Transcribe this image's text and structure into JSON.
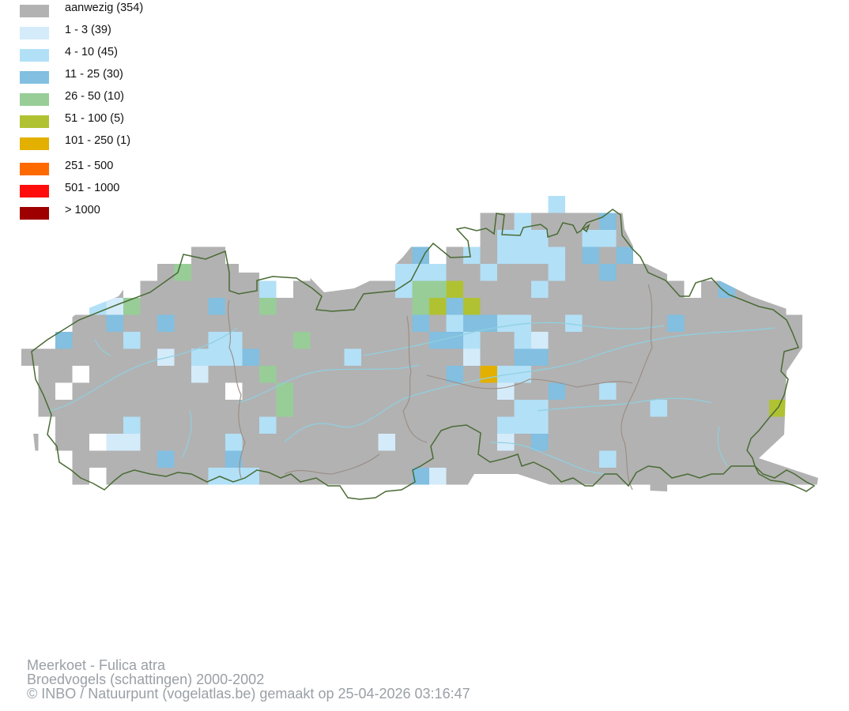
{
  "legend": [
    {
      "label": "aanwezig (354)",
      "color": "#b2b2b2"
    },
    {
      "label": "1 - 3 (39)",
      "color": "#d4ebfa"
    },
    {
      "label": "4 - 10 (45)",
      "color": "#b2e0f7"
    },
    {
      "label": "11 - 25 (30)",
      "color": "#82bfe0"
    },
    {
      "label": "26 - 50 (10)",
      "color": "#98cd98"
    },
    {
      "label": "51 - 100 (5)",
      "color": "#b0c232"
    },
    {
      "label": "101 - 250 (1)",
      "color": "#e3b000"
    },
    {
      "label": "251 - 500",
      "color": "#ff6a00"
    },
    {
      "label": "501 - 1000",
      "color": "#ff0d0d"
    },
    {
      "label": "> 1000",
      "color": "#9e0000"
    }
  ],
  "map": {
    "border_color": "#4a6b35",
    "province_border_color": "#9a8c84",
    "river_color": "#8fd0e0"
  },
  "caption": {
    "species": "Meerkoet - Fulica atra",
    "dataset": "Broedvogels (schattingen) 2000-2002",
    "credit": "© INBO / Natuurpunt (vogelatlas.be) gemaakt op 25-04-2026 03:16:47"
  }
}
